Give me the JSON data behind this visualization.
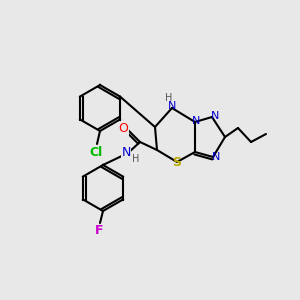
{
  "background_color": "#e8e8e8",
  "bond_color": "#000000",
  "atom_colors": {
    "N": "#0000cc",
    "S": "#bbaa00",
    "O": "#ff0000",
    "Cl": "#00bb00",
    "F": "#cc00cc",
    "H": "#555555",
    "C": "#000000"
  },
  "figsize": [
    3.0,
    3.0
  ],
  "dpi": 100
}
